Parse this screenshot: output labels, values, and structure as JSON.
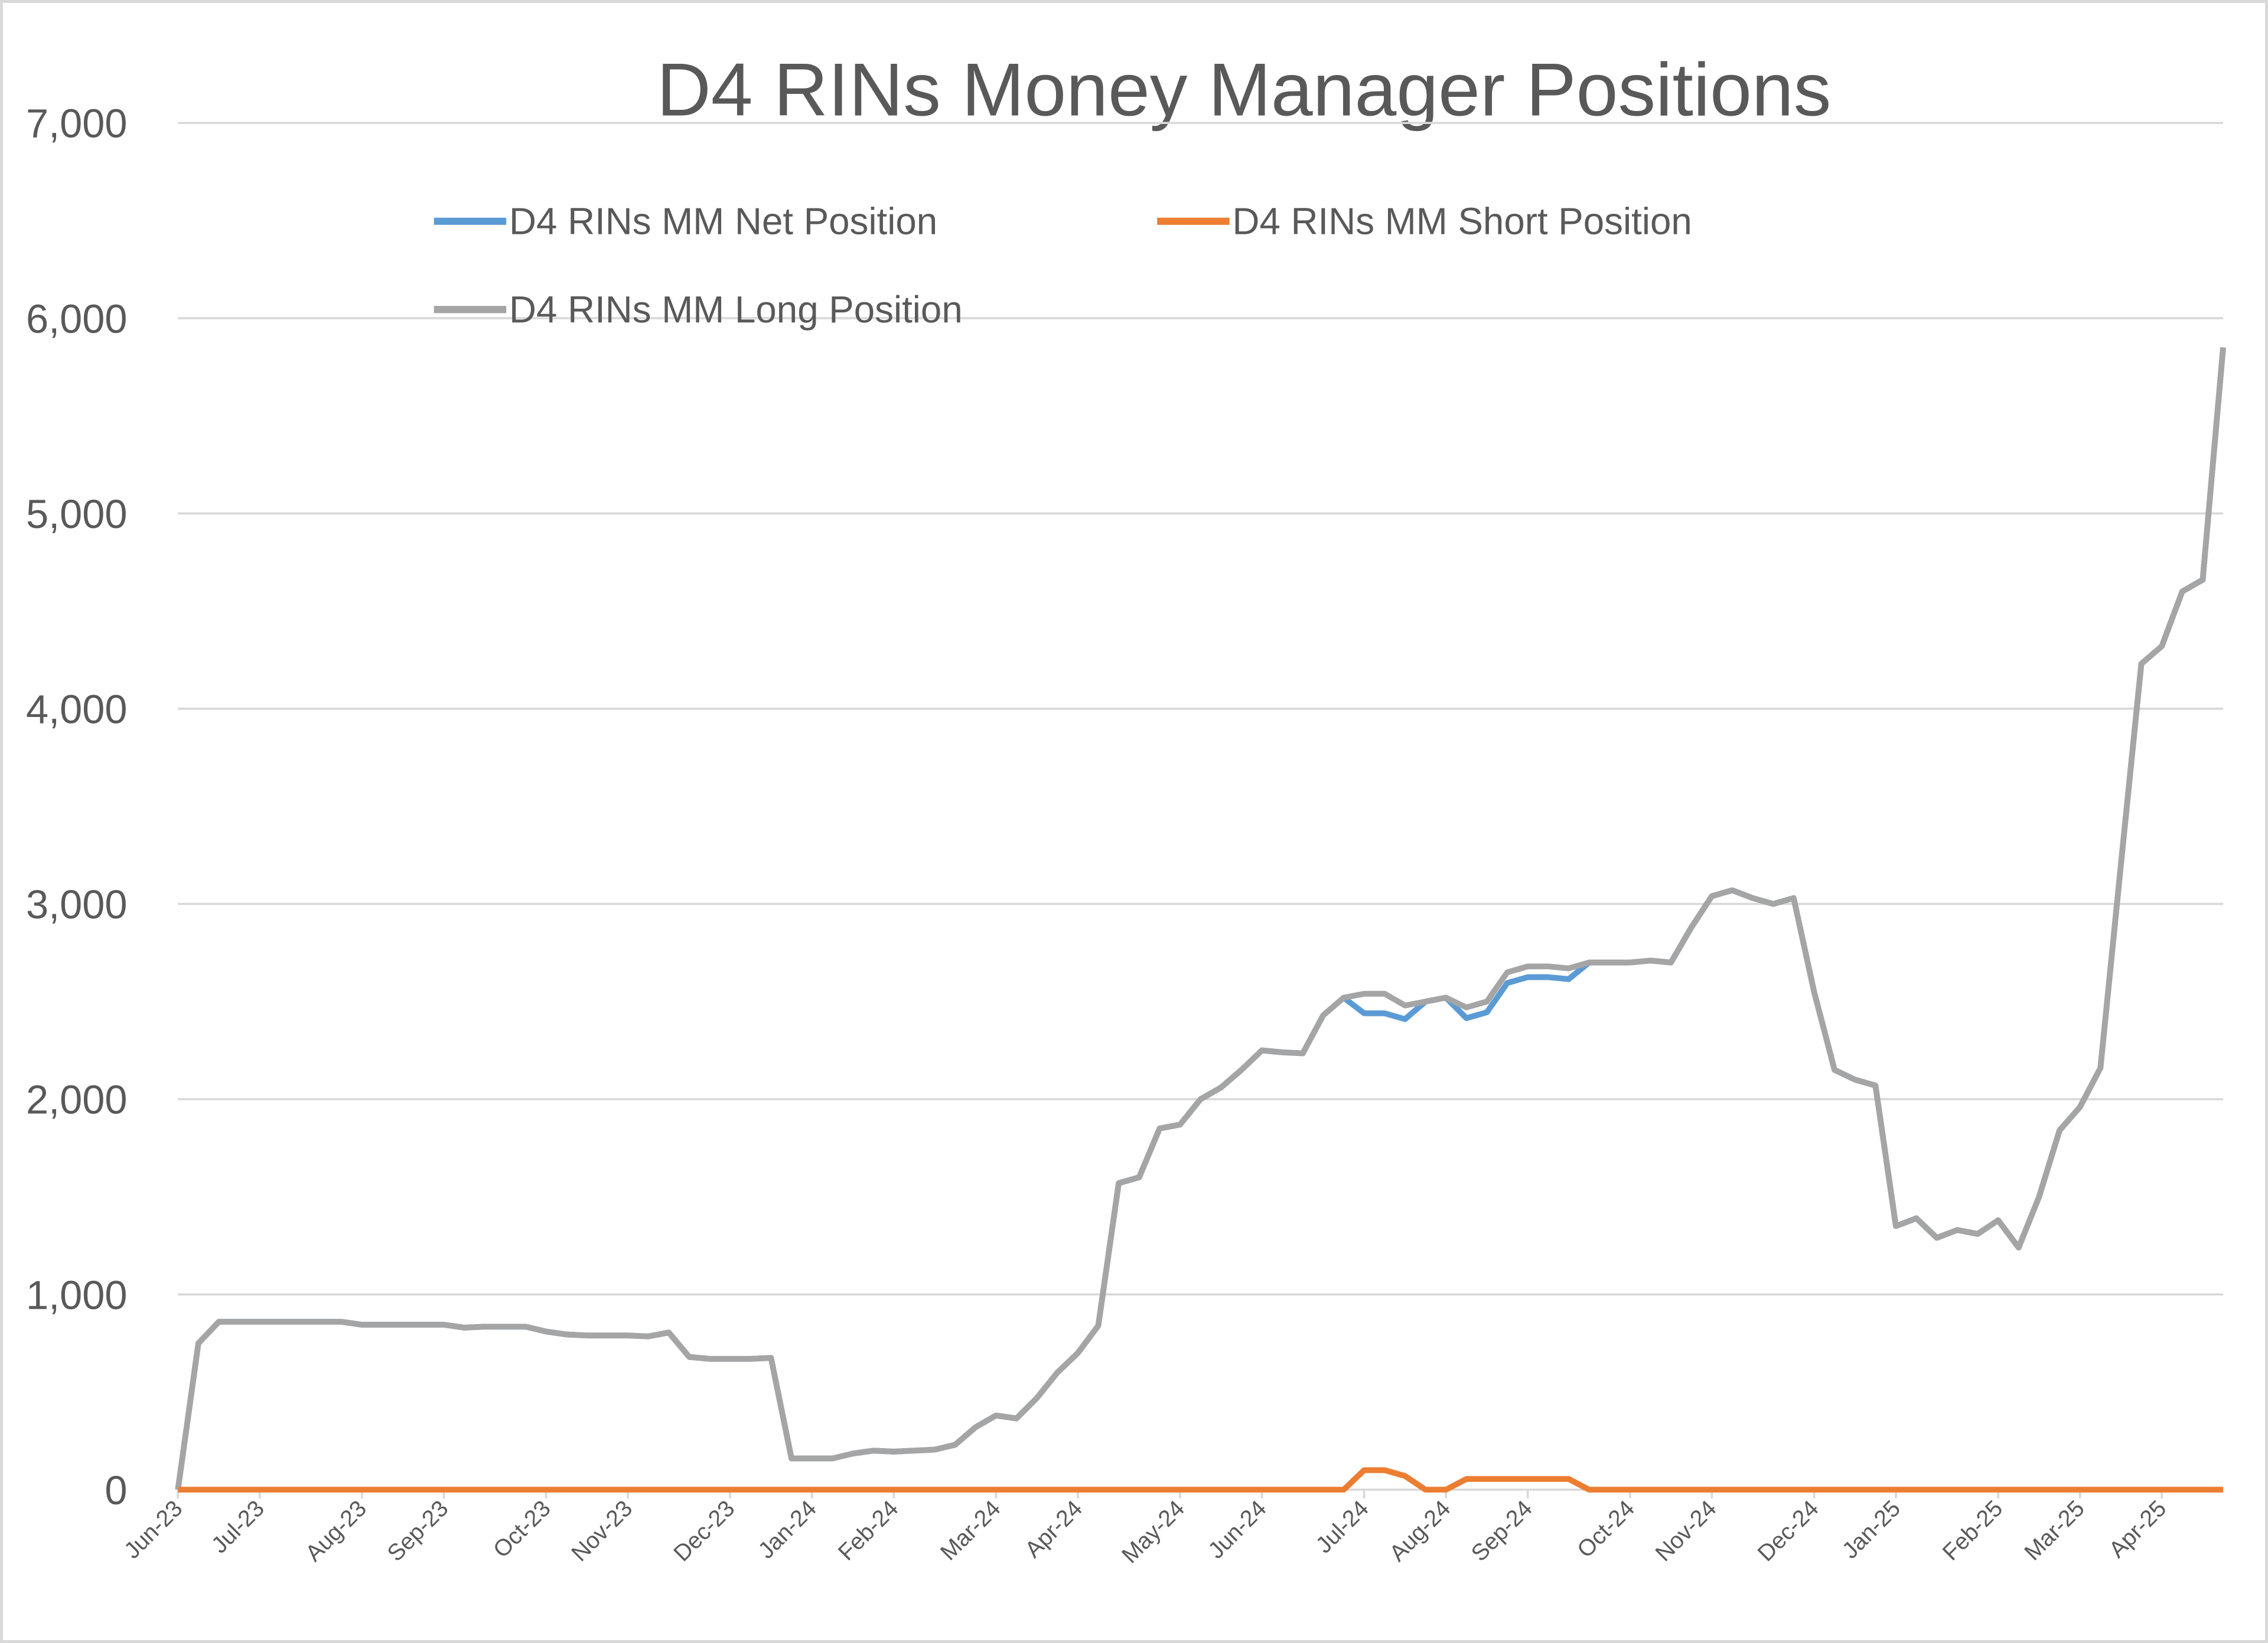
{
  "chart_data": {
    "type": "line",
    "title": "D4 RINs Money Manager Positions",
    "categories": [
      "Jun-23",
      null,
      null,
      null,
      "Jul-23",
      null,
      null,
      null,
      null,
      "Aug-23",
      null,
      null,
      null,
      "Sep-23",
      null,
      null,
      null,
      null,
      "Oct-23",
      null,
      null,
      null,
      "Nov-23",
      null,
      null,
      null,
      null,
      "Dec-23",
      null,
      null,
      null,
      "Jan-24",
      null,
      null,
      null,
      "Feb-24",
      null,
      null,
      null,
      null,
      "Mar-24",
      null,
      null,
      null,
      "Apr-24",
      null,
      null,
      null,
      null,
      "May-24",
      null,
      null,
      null,
      "Jun-24",
      null,
      null,
      null,
      null,
      "Jul-24",
      null,
      null,
      null,
      "Aug-24",
      null,
      null,
      null,
      "Sep-24",
      null,
      null,
      null,
      null,
      "Oct-24",
      null,
      null,
      null,
      "Nov-24",
      null,
      null,
      null,
      null,
      "Dec-24",
      null,
      null,
      null,
      "Jan-25",
      null,
      null,
      null,
      null,
      "Feb-25",
      null,
      null,
      null,
      "Mar-25",
      null,
      null,
      null,
      "Apr-25",
      null,
      null,
      null
    ],
    "series": [
      {
        "name": "D4 RINs MM Net Position",
        "color": "#5b9bd5",
        "values": [
          0,
          750,
          860,
          860,
          860,
          860,
          860,
          860,
          860,
          845,
          845,
          845,
          845,
          845,
          830,
          835,
          835,
          835,
          810,
          795,
          790,
          790,
          790,
          785,
          805,
          680,
          670,
          670,
          670,
          675,
          160,
          160,
          160,
          185,
          200,
          195,
          200,
          205,
          230,
          320,
          380,
          365,
          470,
          600,
          700,
          840,
          1570,
          1600,
          1850,
          1870,
          2000,
          2060,
          2150,
          2250,
          2240,
          2235,
          2430,
          2520,
          2440,
          2440,
          2410,
          2500,
          2520,
          2415,
          2445,
          2595,
          2625,
          2625,
          2615,
          2700,
          2700,
          2700,
          2710,
          2700,
          2880,
          3040,
          3070,
          3030,
          3000,
          3030,
          2550,
          2150,
          2100,
          2070,
          1350,
          1390,
          1290,
          1330,
          1310,
          1380,
          1240,
          1500,
          1840,
          1960,
          2160,
          3200,
          4230,
          4320,
          4600,
          4660,
          5850
        ]
      },
      {
        "name": "D4 RINs MM Short Position",
        "color": "#ed7d31",
        "values": [
          0,
          0,
          0,
          0,
          0,
          0,
          0,
          0,
          0,
          0,
          0,
          0,
          0,
          0,
          0,
          0,
          0,
          0,
          0,
          0,
          0,
          0,
          0,
          0,
          0,
          0,
          0,
          0,
          0,
          0,
          0,
          0,
          0,
          0,
          0,
          0,
          0,
          0,
          0,
          0,
          0,
          0,
          0,
          0,
          0,
          0,
          0,
          0,
          0,
          0,
          0,
          0,
          0,
          0,
          0,
          0,
          0,
          0,
          100,
          100,
          70,
          0,
          0,
          55,
          55,
          55,
          55,
          55,
          55,
          0,
          0,
          0,
          0,
          0,
          0,
          0,
          0,
          0,
          0,
          0,
          0,
          0,
          0,
          0,
          0,
          0,
          0,
          0,
          0,
          0,
          0,
          0,
          0,
          0,
          0,
          0,
          0,
          0,
          0,
          0,
          0
        ]
      },
      {
        "name": "D4 RINs MM Long Position",
        "color": "#a5a5a5",
        "values": [
          0,
          750,
          860,
          860,
          860,
          860,
          860,
          860,
          860,
          845,
          845,
          845,
          845,
          845,
          830,
          835,
          835,
          835,
          810,
          795,
          790,
          790,
          790,
          785,
          805,
          680,
          670,
          670,
          670,
          675,
          160,
          160,
          160,
          185,
          200,
          195,
          200,
          205,
          230,
          320,
          380,
          365,
          470,
          600,
          700,
          840,
          1570,
          1600,
          1850,
          1870,
          2000,
          2060,
          2150,
          2250,
          2240,
          2235,
          2430,
          2520,
          2540,
          2540,
          2480,
          2500,
          2520,
          2470,
          2500,
          2650,
          2680,
          2680,
          2670,
          2700,
          2700,
          2700,
          2710,
          2700,
          2880,
          3040,
          3070,
          3030,
          3000,
          3030,
          2550,
          2150,
          2100,
          2070,
          1350,
          1390,
          1290,
          1330,
          1310,
          1380,
          1240,
          1500,
          1840,
          1960,
          2160,
          3200,
          4230,
          4320,
          4600,
          4660,
          5850
        ]
      }
    ],
    "ylim": [
      0,
      7000
    ],
    "yticks": [
      0,
      {
        "value": 1000,
        "label": "1,000"
      },
      {
        "value": 2000,
        "label": "2,000"
      },
      {
        "value": 3000,
        "label": "3,000"
      },
      {
        "value": 4000,
        "label": "4,000"
      },
      {
        "value": 5000,
        "label": "5,000"
      },
      {
        "value": 6000,
        "label": "6,000"
      },
      {
        "value": 7000,
        "label": "7,000"
      }
    ],
    "grid": true
  }
}
